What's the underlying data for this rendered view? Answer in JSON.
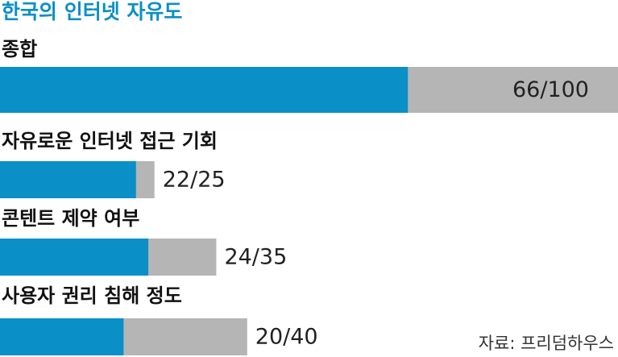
{
  "chart_data": {
    "type": "bar",
    "title": "한국의 인터넷 자유도",
    "categories": [
      "종합",
      "자유로운 인터넷 접근 기회",
      "콘텐트 제약 여부",
      "사용자 권리 침해 정도"
    ],
    "values": [
      66,
      22,
      24,
      20
    ],
    "max": [
      100,
      25,
      35,
      40
    ],
    "value_labels": [
      "66/100",
      "22/25",
      "24/35",
      "20/40"
    ],
    "color": "#0a8fc7",
    "max_color": "#b5b5b5",
    "xlim": [
      0,
      100
    ],
    "source": "자료: 프리덤하우스"
  }
}
